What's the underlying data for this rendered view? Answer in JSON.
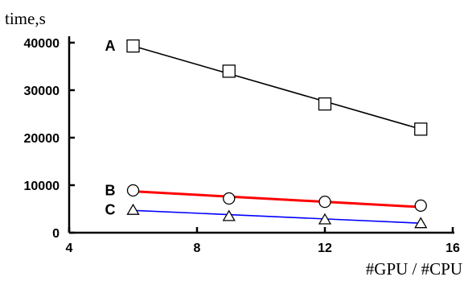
{
  "chart_data": {
    "type": "line",
    "ylabel": "time,s",
    "xlabel": "#GPU / #CPU",
    "xlim": [
      4,
      16
    ],
    "ylim": [
      0,
      40000
    ],
    "xticks": [
      4,
      8,
      12,
      16
    ],
    "yticks": [
      0,
      10000,
      20000,
      30000,
      40000
    ],
    "grid": false,
    "series": [
      {
        "name": "A",
        "color": "#000000",
        "marker": "square",
        "points": [
          [
            6,
            39300
          ],
          [
            9,
            34000
          ],
          [
            12,
            27100
          ],
          [
            15,
            21800
          ]
        ],
        "fit": [
          [
            6,
            39300
          ],
          [
            15,
            21800
          ]
        ]
      },
      {
        "name": "B",
        "color": "#ff0000",
        "marker": "circle",
        "points": [
          [
            6,
            8900
          ],
          [
            9,
            7200
          ],
          [
            12,
            6500
          ],
          [
            15,
            5700
          ]
        ],
        "fit": [
          [
            6,
            8700
          ],
          [
            15,
            5400
          ]
        ]
      },
      {
        "name": "C",
        "color": "#0000ff",
        "marker": "triangle",
        "points": [
          [
            6,
            4800
          ],
          [
            9,
            3500
          ],
          [
            12,
            2800
          ],
          [
            15,
            2000
          ]
        ],
        "fit": [
          [
            6,
            4700
          ],
          [
            15,
            2000
          ]
        ]
      }
    ]
  }
}
